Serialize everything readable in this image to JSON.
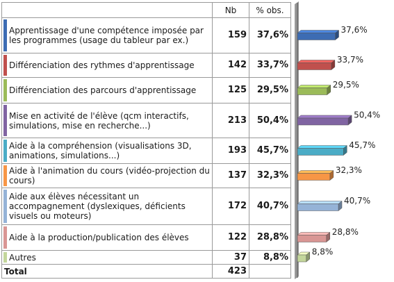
{
  "chart_data": {
    "type": "bar",
    "orientation": "horizontal",
    "columns": [
      "Nb",
      "% obs."
    ],
    "categories": [
      "Apprentissage d'une compétence imposée par les programmes (usage du tableur par ex.)",
      "Différenciation des rythmes d'apprentissage",
      "Différenciation des parcours d'apprentissage",
      "Mise en activité de l'élève (qcm interactifs, simulations, mise en recherche...)",
      "Aide à la compréhension (visualisations 3D, animations, simulations...)",
      "Aide à l'animation du cours (vidéo-projection du cours)",
      "Aide aux élèves nécessitant un accompagnement (dyslexiques, déficients visuels ou moteurs)",
      "Aide à la production/publication des élèves",
      "Autres"
    ],
    "counts": [
      159,
      142,
      125,
      213,
      193,
      137,
      172,
      122,
      37
    ],
    "values": [
      37.6,
      33.7,
      29.5,
      50.4,
      45.7,
      32.3,
      40.7,
      28.8,
      8.8
    ],
    "value_labels": [
      "37,6%",
      "33,7%",
      "29,5%",
      "50,4%",
      "45,7%",
      "32,3%",
      "40,7%",
      "28,8%",
      "8,8%"
    ],
    "colors": [
      "#3d6cb3",
      "#c0504d",
      "#9bbb59",
      "#8064a2",
      "#4bacc6",
      "#f79646",
      "#95b3d7",
      "#d99694",
      "#c3d69b"
    ],
    "total_label": "Total",
    "total": 423
  }
}
